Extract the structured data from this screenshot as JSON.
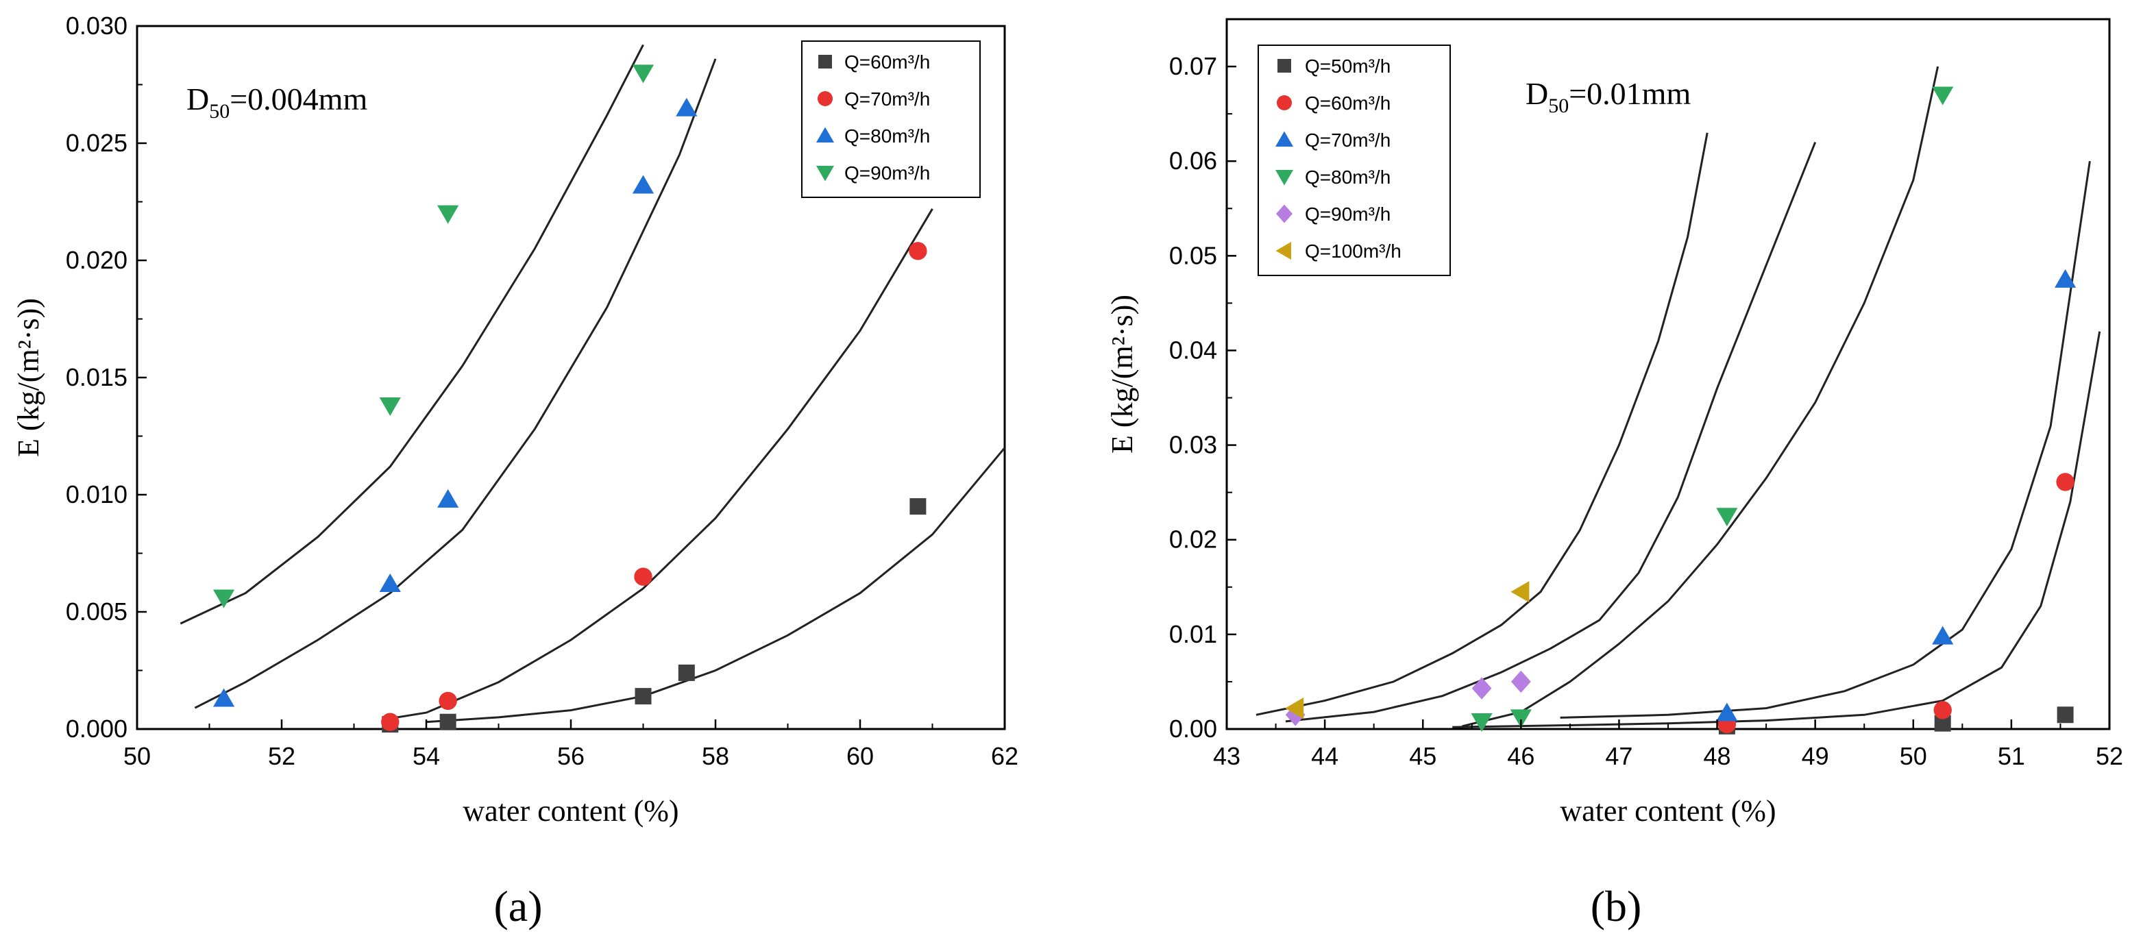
{
  "chart_data": [
    {
      "type": "scatter",
      "panel_label": "(a)",
      "annotation": {
        "main": "D",
        "sub": "50",
        "rest": "=0.004mm"
      },
      "xlabel": "water content (%)",
      "ylabel": "E (kg/(m²·s))",
      "xlim": [
        50,
        62
      ],
      "ylim": [
        0,
        0.03
      ],
      "xticks": [
        "50",
        "52",
        "54",
        "56",
        "58",
        "60",
        "62"
      ],
      "yticks": [
        "0.000",
        "0.005",
        "0.010",
        "0.015",
        "0.020",
        "0.025",
        "0.030"
      ],
      "legend_position": "top-right",
      "series": [
        {
          "name": "Q=60m³/h",
          "marker": "square",
          "color": "#404040",
          "points": [
            [
              53.5,
              0.0002
            ],
            [
              54.3,
              0.0003
            ],
            [
              57.0,
              0.0014
            ],
            [
              57.6,
              0.0024
            ],
            [
              60.8,
              0.0095
            ]
          ]
        },
        {
          "name": "Q=70m³/h",
          "marker": "circle",
          "color": "#e8322f",
          "points": [
            [
              53.5,
              0.0003
            ],
            [
              54.3,
              0.0012
            ],
            [
              57.0,
              0.0065
            ],
            [
              60.8,
              0.0204
            ]
          ]
        },
        {
          "name": "Q=80m³/h",
          "marker": "triangle-up",
          "color": "#1f6fd6",
          "points": [
            [
              51.2,
              0.0013
            ],
            [
              53.5,
              0.0062
            ],
            [
              54.3,
              0.0098
            ],
            [
              57.0,
              0.0232
            ],
            [
              57.6,
              0.0265
            ]
          ]
        },
        {
          "name": "Q=90m³/h",
          "marker": "triangle-down",
          "color": "#2faa5e",
          "points": [
            [
              51.2,
              0.0056
            ],
            [
              53.5,
              0.0138
            ],
            [
              54.3,
              0.022
            ],
            [
              57.0,
              0.028
            ]
          ]
        }
      ],
      "fit_curves": [
        [
          [
            54.0,
            0.0003
          ],
          [
            55.0,
            0.0005
          ],
          [
            56.0,
            0.0008
          ],
          [
            57.0,
            0.0014
          ],
          [
            58.0,
            0.0025
          ],
          [
            59.0,
            0.004
          ],
          [
            60.0,
            0.0058
          ],
          [
            61.0,
            0.0083
          ],
          [
            62.0,
            0.012
          ]
        ],
        [
          [
            53.4,
            0.0004
          ],
          [
            54.0,
            0.0007
          ],
          [
            55.0,
            0.002
          ],
          [
            56.0,
            0.0038
          ],
          [
            57.0,
            0.006
          ],
          [
            58.0,
            0.009
          ],
          [
            59.0,
            0.0128
          ],
          [
            60.0,
            0.017
          ],
          [
            61.0,
            0.0222
          ]
        ],
        [
          [
            50.8,
            0.0009
          ],
          [
            51.5,
            0.002
          ],
          [
            52.5,
            0.0038
          ],
          [
            53.5,
            0.0058
          ],
          [
            54.5,
            0.0085
          ],
          [
            55.5,
            0.0128
          ],
          [
            56.5,
            0.018
          ],
          [
            57.5,
            0.0245
          ],
          [
            58.0,
            0.0286
          ]
        ],
        [
          [
            50.6,
            0.0045
          ],
          [
            51.5,
            0.0058
          ],
          [
            52.5,
            0.0082
          ],
          [
            53.5,
            0.0112
          ],
          [
            54.5,
            0.0155
          ],
          [
            55.5,
            0.0205
          ],
          [
            56.5,
            0.0262
          ],
          [
            57.0,
            0.0292
          ]
        ]
      ]
    },
    {
      "type": "scatter",
      "panel_label": "(b)",
      "annotation": {
        "main": "D",
        "sub": "50",
        "rest": "=0.01mm"
      },
      "xlabel": "water content (%)",
      "ylabel": "E (kg/(m²·s))",
      "xlim": [
        43,
        52
      ],
      "ylim": [
        0,
        0.075
      ],
      "xticks": [
        "43",
        "44",
        "45",
        "46",
        "47",
        "48",
        "49",
        "50",
        "51",
        "52"
      ],
      "yticks": [
        "0.00",
        "0.01",
        "0.02",
        "0.03",
        "0.04",
        "0.05",
        "0.06",
        "0.07"
      ],
      "legend_position": "top-left",
      "series": [
        {
          "name": "Q=50m³/h",
          "marker": "square",
          "color": "#404040",
          "points": [
            [
              48.1,
              0.0003
            ],
            [
              50.3,
              0.0006
            ],
            [
              51.55,
              0.0015
            ]
          ]
        },
        {
          "name": "Q=60m³/h",
          "marker": "circle",
          "color": "#e8322f",
          "points": [
            [
              48.1,
              0.0005
            ],
            [
              50.3,
              0.002
            ],
            [
              51.55,
              0.0261
            ]
          ]
        },
        {
          "name": "Q=70m³/h",
          "marker": "triangle-up",
          "color": "#1f6fd6",
          "points": [
            [
              48.1,
              0.0017
            ],
            [
              50.3,
              0.0098
            ],
            [
              51.55,
              0.0475
            ]
          ]
        },
        {
          "name": "Q=80m³/h",
          "marker": "triangle-down",
          "color": "#2faa5e",
          "points": [
            [
              45.6,
              0.0008
            ],
            [
              46.0,
              0.0012
            ],
            [
              48.1,
              0.0225
            ],
            [
              50.3,
              0.067
            ]
          ]
        },
        {
          "name": "Q=90m³/h",
          "marker": "diamond",
          "color": "#b57ee0",
          "points": [
            [
              43.7,
              0.0015
            ],
            [
              45.6,
              0.0043
            ],
            [
              46.0,
              0.005
            ]
          ]
        },
        {
          "name": "Q=100m³/h",
          "marker": "triangle-left",
          "color": "#c9a214",
          "points": [
            [
              43.7,
              0.0022
            ],
            [
              46.0,
              0.0145
            ]
          ]
        }
      ],
      "fit_curves": [
        [
          [
            45.3,
            0.0002
          ],
          [
            46.5,
            0.0004
          ],
          [
            47.5,
            0.0006
          ],
          [
            48.5,
            0.0009
          ],
          [
            49.5,
            0.0015
          ],
          [
            50.3,
            0.003
          ],
          [
            50.9,
            0.0065
          ],
          [
            51.3,
            0.013
          ],
          [
            51.6,
            0.024
          ],
          [
            51.9,
            0.042
          ]
        ],
        [
          [
            46.4,
            0.0012
          ],
          [
            47.5,
            0.0015
          ],
          [
            48.5,
            0.0022
          ],
          [
            49.3,
            0.004
          ],
          [
            50.0,
            0.0068
          ],
          [
            50.5,
            0.0105
          ],
          [
            51.0,
            0.019
          ],
          [
            51.4,
            0.032
          ],
          [
            51.8,
            0.06
          ]
        ],
        [
          [
            45.4,
            0.0003
          ],
          [
            46.0,
            0.0018
          ],
          [
            46.5,
            0.005
          ],
          [
            47.0,
            0.009
          ],
          [
            47.5,
            0.0135
          ],
          [
            48.0,
            0.0195
          ],
          [
            48.5,
            0.0265
          ],
          [
            49.0,
            0.0345
          ],
          [
            49.5,
            0.045
          ],
          [
            50.0,
            0.058
          ],
          [
            50.25,
            0.07
          ]
        ],
        [
          [
            43.6,
            0.0008
          ],
          [
            44.5,
            0.0018
          ],
          [
            45.2,
            0.0035
          ],
          [
            45.8,
            0.006
          ],
          [
            46.3,
            0.0085
          ],
          [
            46.8,
            0.0115
          ],
          [
            47.2,
            0.0165
          ],
          [
            47.6,
            0.0245
          ],
          [
            48.0,
            0.036
          ],
          [
            48.5,
            0.049
          ],
          [
            49.0,
            0.062
          ]
        ],
        [
          [
            43.3,
            0.0015
          ],
          [
            44.0,
            0.003
          ],
          [
            44.7,
            0.005
          ],
          [
            45.3,
            0.008
          ],
          [
            45.8,
            0.011
          ],
          [
            46.2,
            0.0145
          ],
          [
            46.6,
            0.021
          ],
          [
            47.0,
            0.03
          ],
          [
            47.4,
            0.041
          ],
          [
            47.7,
            0.052
          ],
          [
            47.9,
            0.063
          ]
        ]
      ]
    }
  ]
}
